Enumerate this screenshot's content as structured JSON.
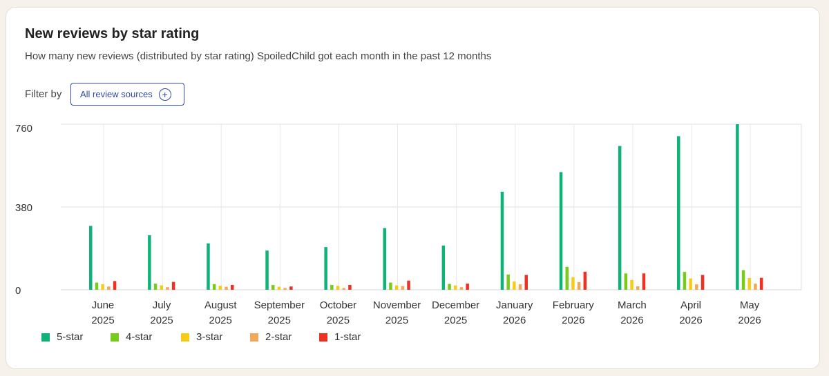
{
  "card": {
    "title": "New reviews by star rating",
    "subtitle": "How many new reviews (distributed by star rating) SpoiledChild got each month in the past 12 months"
  },
  "filter": {
    "label": "Filter by",
    "button_label": "All review sources",
    "button_icon": "plus-circle-icon"
  },
  "chart_data": {
    "type": "bar",
    "title": "New reviews by star rating",
    "categories": [
      [
        "June",
        "2025"
      ],
      [
        "July",
        "2025"
      ],
      [
        "August",
        "2025"
      ],
      [
        "September",
        "2025"
      ],
      [
        "October",
        "2025"
      ],
      [
        "November",
        "2025"
      ],
      [
        "December",
        "2025"
      ],
      [
        "January",
        "2026"
      ],
      [
        "February",
        "2026"
      ],
      [
        "March",
        "2026"
      ],
      [
        "April",
        "2026"
      ],
      [
        "May",
        "2026"
      ]
    ],
    "series": [
      {
        "name": "5-star",
        "color": "#0fb277",
        "values": [
          293,
          250,
          213,
          180,
          196,
          283,
          203,
          450,
          540,
          660,
          705,
          760
        ]
      },
      {
        "name": "4-star",
        "color": "#77cc1a",
        "values": [
          33,
          28,
          26,
          22,
          22,
          33,
          27,
          70,
          105,
          75,
          82,
          90
        ]
      },
      {
        "name": "3-star",
        "color": "#f7cc17",
        "values": [
          25,
          20,
          18,
          14,
          18,
          20,
          20,
          38,
          58,
          45,
          52,
          54
        ]
      },
      {
        "name": "2-star",
        "color": "#f0a85a",
        "values": [
          15,
          12,
          14,
          8,
          8,
          17,
          12,
          25,
          35,
          16,
          25,
          28
        ]
      },
      {
        "name": "1-star",
        "color": "#ee3123",
        "values": [
          40,
          36,
          22,
          15,
          22,
          42,
          28,
          68,
          83,
          75,
          68,
          55
        ]
      }
    ],
    "yticks": [
      0,
      380,
      760
    ],
    "ylim": [
      0,
      760
    ],
    "grid": true,
    "legend_position": "bottom-left",
    "xlabel": "",
    "ylabel": ""
  }
}
